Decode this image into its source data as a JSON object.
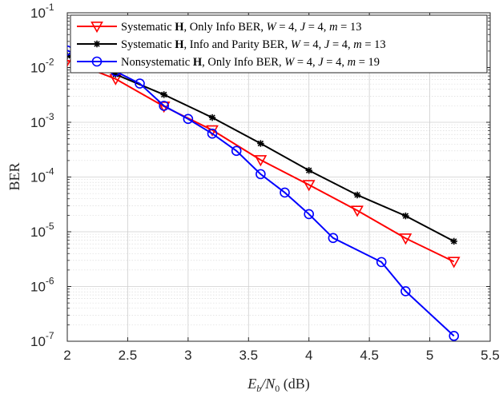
{
  "chart_data": {
    "type": "line",
    "xlabel": {
      "main": "E",
      "sub1": "b",
      "slash": "/N",
      "sub2": "0",
      "unit": " (dB)"
    },
    "ylabel": "BER",
    "xlim": [
      2,
      5.5
    ],
    "ylim": [
      1e-07,
      0.1
    ],
    "yscale": "log",
    "grid": true,
    "minor_grid": true,
    "legend_position": "top-left",
    "x_ticks": [
      "2",
      "2.5",
      "3",
      "3.5",
      "4",
      "4.5",
      "5",
      "5.5"
    ],
    "y_ticks": [
      {
        "base": "10",
        "exp": "-7"
      },
      {
        "base": "10",
        "exp": "-6"
      },
      {
        "base": "10",
        "exp": "-5"
      },
      {
        "base": "10",
        "exp": "-4"
      },
      {
        "base": "10",
        "exp": "-3"
      },
      {
        "base": "10",
        "exp": "-2"
      },
      {
        "base": "10",
        "exp": "-1"
      }
    ],
    "series": [
      {
        "name": "Systematic H, Only Info BER, W = 4, J = 4, m = 13",
        "legend_parts": {
          "prefix": "Systematic ",
          "bold": "H",
          "rest": ", Only Info BER, ",
          "W": "W",
          "Wv": " = 4, ",
          "J": "J",
          "Jv": " = 4, ",
          "m": "m",
          "mv": " = 13"
        },
        "color": "#ff0000",
        "marker": "triangle-down",
        "x": [
          2.0,
          2.4,
          2.8,
          3.2,
          3.6,
          4.0,
          4.4,
          4.8,
          5.2
        ],
        "y": [
          0.0135,
          0.0062,
          0.00195,
          0.00072,
          0.000205,
          7.2e-05,
          2.45e-05,
          7.6e-06,
          2.85e-06
        ]
      },
      {
        "name": "Systematic H, Info and Parity BER, W = 4, J = 4, m = 13",
        "legend_parts": {
          "prefix": "Systematic ",
          "bold": "H",
          "rest": ", Info and Parity BER, ",
          "W": "W",
          "Wv": " = 4, ",
          "J": "J",
          "Jv": " = 4, ",
          "m": "m",
          "mv": " = 13"
        },
        "color": "#000000",
        "marker": "asterisk",
        "x": [
          2.0,
          2.4,
          2.8,
          3.2,
          3.6,
          4.0,
          4.4,
          4.8,
          5.2
        ],
        "y": [
          0.0165,
          0.0075,
          0.0032,
          0.00122,
          0.00041,
          0.000132,
          4.7e-05,
          1.95e-05,
          6.7e-06
        ]
      },
      {
        "name": "Nonsystematic H, Only Info BER, W = 4, J = 4, m = 19",
        "legend_parts": {
          "prefix": "Nonsystematic ",
          "bold": "H",
          "rest": ", Only Info BER, ",
          "W": "W",
          "Wv": " = 4, ",
          "J": "J",
          "Jv": " = 4, ",
          "m": "m",
          "mv": " = 19"
        },
        "color": "#0000ff",
        "marker": "circle",
        "x": [
          2.0,
          2.4,
          2.6,
          2.8,
          3.0,
          3.2,
          3.4,
          3.6,
          3.8,
          4.0,
          4.2,
          4.6,
          4.8,
          5.2
        ],
        "y": [
          0.0205,
          0.0085,
          0.0051,
          0.002,
          0.00115,
          0.00062,
          0.0003,
          0.000113,
          5.2e-05,
          2.1e-05,
          7.7e-06,
          2.8e-06,
          8.2e-07,
          1.25e-07
        ]
      }
    ]
  }
}
